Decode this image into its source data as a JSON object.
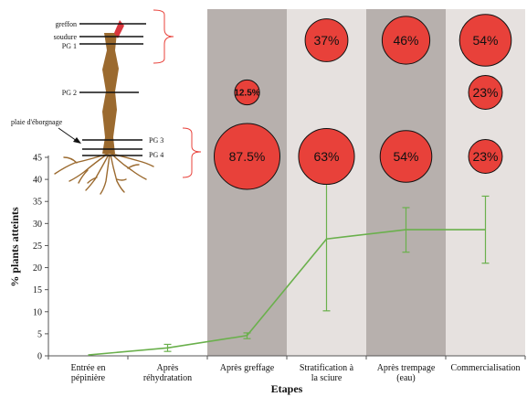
{
  "chart_data": {
    "type": "line",
    "title": "",
    "xlabel": "Etapes",
    "ylabel": "% plants atteints",
    "ylim": [
      0,
      45
    ],
    "yticks": [
      0,
      5,
      10,
      15,
      20,
      25,
      30,
      35,
      40,
      45
    ],
    "categories": [
      "Entrée en pépinière",
      "Après réhydratation",
      "Après greffage",
      "Stratification à la sciure",
      "Après trempage (eau)",
      "Commercialisation"
    ],
    "series": [
      {
        "values": [
          0.2,
          1.8,
          4.6,
          26.5,
          28.6,
          28.6
        ],
        "error_low": [
          null,
          1.0,
          3.9,
          10.2,
          23.5,
          21.0
        ],
        "error_high": [
          null,
          2.6,
          5.2,
          42.7,
          33.6,
          36.2
        ],
        "color": "#6ab04c"
      }
    ],
    "shaded_columns": [
      2,
      4
    ],
    "shade_colors": {
      "dark": "#b7b0ad",
      "light": "#e6e1df"
    },
    "bubbles": [
      {
        "col": 2,
        "row": "PG 2",
        "label": "12.5%"
      },
      {
        "col": 2,
        "row": "PG 3-4",
        "label": "87.5%"
      },
      {
        "col": 3,
        "row": "PG 1",
        "label": "37%"
      },
      {
        "col": 3,
        "row": "PG 3-4",
        "label": "63%"
      },
      {
        "col": 4,
        "row": "PG 1",
        "label": "46%"
      },
      {
        "col": 4,
        "row": "PG 3-4",
        "label": "54%"
      },
      {
        "col": 5,
        "row": "PG 1",
        "label": "54%"
      },
      {
        "col": 5,
        "row": "PG 2",
        "label": "23%"
      },
      {
        "col": 5,
        "row": "PG 3-4",
        "label": "23%"
      }
    ],
    "bubble_color": "#e8413a"
  },
  "plant": {
    "labels": {
      "greffon": "greffon",
      "soudure": "soudure",
      "pg1": "PG 1",
      "pg2": "PG 2",
      "eborgnage": "plaie d'éborgnage",
      "pg3": "PG 3",
      "pg4": "PG 4"
    },
    "stem_color": "#9b6a2f",
    "scion_color": "#d9363e",
    "brace_color": "#e8413a"
  }
}
